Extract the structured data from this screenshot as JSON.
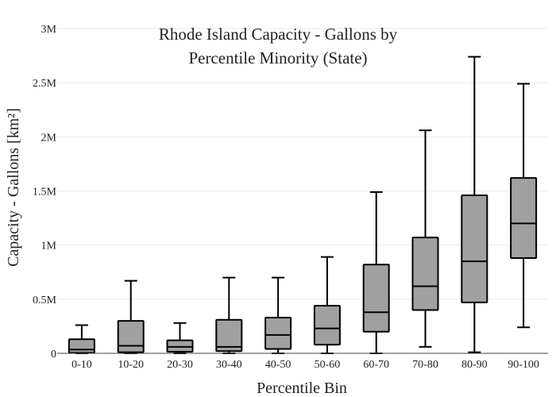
{
  "chart_data": {
    "type": "box",
    "title_lines": [
      "Rhode Island Capacity - Gallons by",
      "Percentile Minority (State)"
    ],
    "xlabel": "Percentile Bin",
    "ylabel": "Capacity - Gallons  [km²]",
    "ylim": [
      0,
      3000000
    ],
    "yticks": [
      {
        "value": 0,
        "label": "0"
      },
      {
        "value": 500000,
        "label": "0.5M"
      },
      {
        "value": 1000000,
        "label": "1M"
      },
      {
        "value": 1500000,
        "label": "1.5M"
      },
      {
        "value": 2000000,
        "label": "2M"
      },
      {
        "value": 2500000,
        "label": "2.5M"
      },
      {
        "value": 3000000,
        "label": "3M"
      }
    ],
    "grid": true,
    "box_color": "#a0a0a0",
    "line_color": "#000000",
    "categories": [
      "0-10",
      "10-20",
      "20-30",
      "30-40",
      "40-50",
      "50-60",
      "60-70",
      "70-80",
      "80-90",
      "90-100"
    ],
    "boxes": [
      {
        "min": 0,
        "q1": 5000,
        "median": 35000,
        "q3": 130000,
        "max": 260000
      },
      {
        "min": 0,
        "q1": 10000,
        "median": 70000,
        "q3": 300000,
        "max": 670000
      },
      {
        "min": 0,
        "q1": 15000,
        "median": 60000,
        "q3": 120000,
        "max": 280000
      },
      {
        "min": 0,
        "q1": 20000,
        "median": 60000,
        "q3": 310000,
        "max": 700000
      },
      {
        "min": 0,
        "q1": 40000,
        "median": 170000,
        "q3": 330000,
        "max": 700000
      },
      {
        "min": 0,
        "q1": 80000,
        "median": 230000,
        "q3": 440000,
        "max": 890000
      },
      {
        "min": 0,
        "q1": 200000,
        "median": 380000,
        "q3": 820000,
        "max": 1490000
      },
      {
        "min": 60000,
        "q1": 400000,
        "median": 620000,
        "q3": 1070000,
        "max": 2060000
      },
      {
        "min": 10000,
        "q1": 470000,
        "median": 850000,
        "q3": 1460000,
        "max": 2740000
      },
      {
        "min": 240000,
        "q1": 880000,
        "median": 1200000,
        "q3": 1620000,
        "max": 2490000
      }
    ]
  }
}
